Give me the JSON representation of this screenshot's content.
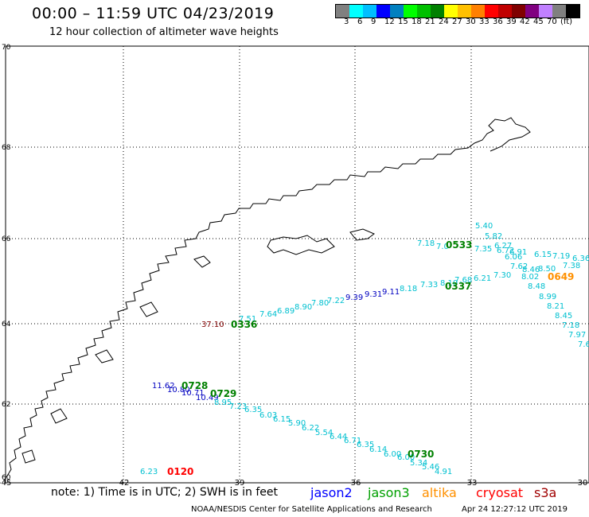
{
  "header": {
    "title": "00:00 – 11:59 UTC 04/23/2019",
    "subtitle": "12 hour collection of altimeter wave heights"
  },
  "legend": {
    "colors": [
      "#808080",
      "#00ffff",
      "#00bfff",
      "#0000ff",
      "#0080c0",
      "#00ff00",
      "#00c000",
      "#008000",
      "#ffff00",
      "#ffc000",
      "#ff8000",
      "#ff0000",
      "#c00000",
      "#800000",
      "#800080",
      "#c080ff",
      "#808080",
      "#000000"
    ],
    "labels": [
      "3",
      "6",
      "9",
      "12",
      "15",
      "18",
      "21",
      "24",
      "27",
      "30",
      "33",
      "36",
      "39",
      "42",
      "45",
      "70",
      "(ft)"
    ]
  },
  "map": {
    "lat_labels": [
      "70",
      "68",
      "66",
      "64",
      "62",
      "60"
    ],
    "lon_labels": [
      "-45",
      "-42",
      "-39",
      "-36",
      "-33",
      "-30"
    ],
    "points": [
      {
        "t": "5.40",
        "c": "#00c0d0"
      },
      {
        "t": "5.82",
        "c": "#00c0d0"
      },
      {
        "t": "6.27",
        "c": "#00c0d0"
      },
      {
        "t": "7.18",
        "c": "#00c0d0"
      },
      {
        "t": "7.0",
        "c": "#00c0d0"
      },
      {
        "t": "7.35",
        "c": "#00c0d0"
      },
      {
        "t": "6.72",
        "c": "#00c0d0"
      },
      {
        "t": "6.91",
        "c": "#00c0d0"
      },
      {
        "t": "6.06",
        "c": "#00c0d0"
      },
      {
        "t": "6.15",
        "c": "#00c0d0"
      },
      {
        "t": "7.19",
        "c": "#00c0d0"
      },
      {
        "t": "6.36",
        "c": "#00c0d0"
      },
      {
        "t": "7.62",
        "c": "#00c0d0"
      },
      {
        "t": "8.46",
        "c": "#00c0d0"
      },
      {
        "t": "8.50",
        "c": "#00c0d0"
      },
      {
        "t": "7.30",
        "c": "#00c0d0"
      },
      {
        "t": "8.02",
        "c": "#00c0d0"
      },
      {
        "t": "7.38",
        "c": "#00c0d0"
      },
      {
        "t": "8.48",
        "c": "#00c0d0"
      },
      {
        "t": "8.99",
        "c": "#00c0d0"
      },
      {
        "t": "8.21",
        "c": "#00c0d0"
      },
      {
        "t": "8.45",
        "c": "#00c0d0"
      },
      {
        "t": "7.18",
        "c": "#00c0d0"
      },
      {
        "t": "7.97",
        "c": "#00c0d0"
      },
      {
        "t": "7.6",
        "c": "#00c0d0"
      },
      {
        "t": "6.21",
        "c": "#00c0d0"
      },
      {
        "t": "7.68",
        "c": "#00c0d0"
      },
      {
        "t": "8.10",
        "c": "#00c0d0"
      },
      {
        "t": "7.33",
        "c": "#00c0d0"
      },
      {
        "t": "8.18",
        "c": "#00c0d0"
      },
      {
        "t": "9.11",
        "c": "#0000c0"
      },
      {
        "t": "9.31",
        "c": "#0000c0"
      },
      {
        "t": "9.39",
        "c": "#0000c0"
      },
      {
        "t": "7.22",
        "c": "#00c0d0"
      },
      {
        "t": "7.80",
        "c": "#00c0d0"
      },
      {
        "t": "8.90",
        "c": "#00c0d0"
      },
      {
        "t": "6.89",
        "c": "#00c0d0"
      },
      {
        "t": "7.64",
        "c": "#00c0d0"
      },
      {
        "t": "7.51",
        "c": "#00c0d0"
      },
      {
        "t": "37.10",
        "c": "#800000"
      },
      {
        "t": "11.62",
        "c": "#0000c0"
      },
      {
        "t": "10.80",
        "c": "#0000c0"
      },
      {
        "t": "10.71",
        "c": "#0000c0"
      },
      {
        "t": "10.49",
        "c": "#0000c0"
      },
      {
        "t": "8.95",
        "c": "#00c0d0"
      },
      {
        "t": "7.23",
        "c": "#00c0d0"
      },
      {
        "t": "6.35",
        "c": "#00c0d0"
      },
      {
        "t": "6.03",
        "c": "#00c0d0"
      },
      {
        "t": "6.15",
        "c": "#00c0d0"
      },
      {
        "t": "5.90",
        "c": "#00c0d0"
      },
      {
        "t": "6.22",
        "c": "#00c0d0"
      },
      {
        "t": "5.54",
        "c": "#00c0d0"
      },
      {
        "t": "6.44",
        "c": "#00c0d0"
      },
      {
        "t": "6.71",
        "c": "#00c0d0"
      },
      {
        "t": "6.35",
        "c": "#00c0d0"
      },
      {
        "t": "6.14",
        "c": "#00c0d0"
      },
      {
        "t": "6.00",
        "c": "#00c0d0"
      },
      {
        "t": "6.00",
        "c": "#00c0d0"
      },
      {
        "t": "5.34",
        "c": "#00c0d0"
      },
      {
        "t": "5.46",
        "c": "#00c0d0"
      },
      {
        "t": "4.91",
        "c": "#00c0d0"
      },
      {
        "t": "6.23",
        "c": "#00c0d0"
      }
    ],
    "time_labels": [
      {
        "t": "0533",
        "c": "#008000"
      },
      {
        "t": "0337",
        "c": "#008000"
      },
      {
        "t": "0649",
        "c": "#ff9000"
      },
      {
        "t": "0336",
        "c": "#008000"
      },
      {
        "t": "0728",
        "c": "#008000"
      },
      {
        "t": "0729",
        "c": "#008000"
      },
      {
        "t": "0730",
        "c": "#008000"
      },
      {
        "t": "0120",
        "c": "#ff0000"
      }
    ]
  },
  "footer": {
    "note": "note: 1) Time is in UTC; 2) SWH is in feet",
    "satellites": [
      {
        "name": "jason2",
        "color": "#0000ff"
      },
      {
        "name": "jason3",
        "color": "#00a000"
      },
      {
        "name": "altika",
        "color": "#ff9000"
      },
      {
        "name": "cryosat",
        "color": "#ff0000"
      },
      {
        "name": "s3a",
        "color": "#a00000"
      }
    ],
    "credit": "NOAA/NESDIS Center for Satellite Applications and Research",
    "timestamp": "Apr 24 12:27:12 UTC 2019"
  }
}
